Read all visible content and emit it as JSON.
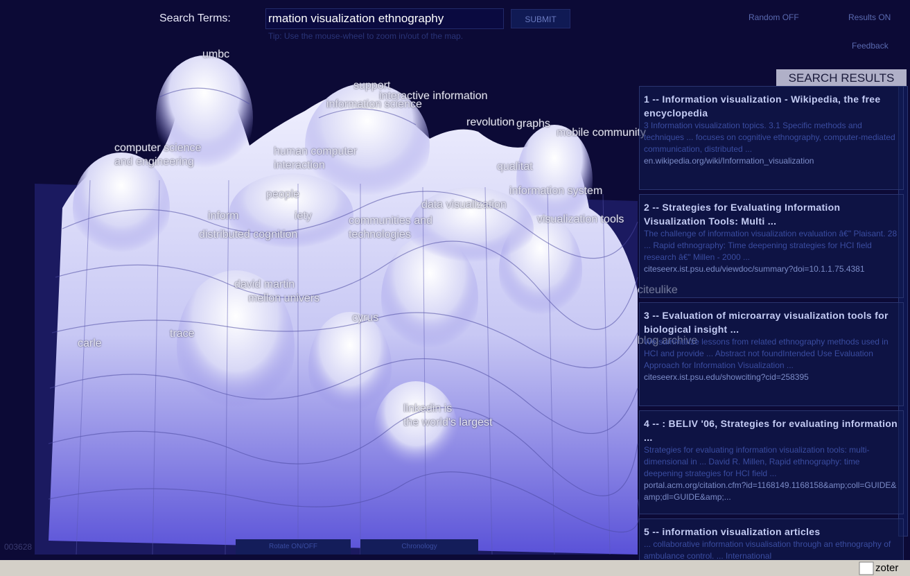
{
  "toolbar": {
    "search_label": "Search Terms:",
    "search_value": "rmation visualization ethnography",
    "submit": "SUBMIT",
    "tip": "Tip: Use the mouse-wheel to zoom in/out of the map.",
    "random": "Random OFF",
    "results": "Results ON",
    "feedback": "Feedback"
  },
  "map": {
    "labels": [
      {
        "lines": [
          "umbc"
        ]
      },
      {
        "lines": [
          "support"
        ]
      },
      {
        "lines": [
          "interactive information"
        ]
      },
      {
        "lines": [
          "information science"
        ]
      },
      {
        "lines": [
          "revolution"
        ]
      },
      {
        "lines": [
          "graphs"
        ]
      },
      {
        "lines": [
          "mobile community"
        ]
      },
      {
        "lines": [
          "computer science",
          "and engineering"
        ]
      },
      {
        "lines": [
          "human computer",
          "interaction"
        ]
      },
      {
        "lines": [
          "people"
        ]
      },
      {
        "lines": [
          "qualitat"
        ]
      },
      {
        "lines": [
          "information system"
        ]
      },
      {
        "lines": [
          "data visualization"
        ]
      },
      {
        "lines": [
          "inform"
        ]
      },
      {
        "lines": [
          "iety"
        ]
      },
      {
        "lines": [
          "distributed cognition"
        ]
      },
      {
        "lines": [
          "communities and",
          "technologies"
        ]
      },
      {
        "lines": [
          "visualization tools"
        ]
      },
      {
        "lines": [
          "citeulike"
        ]
      },
      {
        "lines": [
          "david martin"
        ]
      },
      {
        "lines": [
          "mellon univers"
        ]
      },
      {
        "lines": [
          "cyrus"
        ]
      },
      {
        "lines": [
          "trace"
        ]
      },
      {
        "lines": [
          "carle"
        ]
      },
      {
        "lines": [
          "blog archive"
        ]
      },
      {
        "lines": [
          "linkedin is",
          "the world's largest"
        ]
      }
    ],
    "counter": "003628",
    "rotate": "Rotate ON/OFF",
    "chronology": "Chronology"
  },
  "results": {
    "heading": "SEARCH RESULTS",
    "items": [
      {
        "title": "1 -- Information visualization - Wikipedia, the free encyclopedia",
        "snippet": "3 Information visualization topics. 3.1 Specific methods and techniques ... focuses on cognitive ethnography, computer-mediated communication, distributed ...",
        "url": "en.wikipedia.org/wiki/Information_visualization"
      },
      {
        "title": "2 -- Strategies for Evaluating Information Visualization Tools: Multi ...",
        "snippet": "The challenge of information visualization evaluation â€\" Plaisant. 28 ... Rapid ethnography: Time deepening strategies for HCI field research â€\" Millen - 2000 ...",
        "url": "citeseerx.ist.psu.edu/viewdoc/summary?doi=10.1.1.75.4381"
      },
      {
        "title": "3 -- Evaluation of microarray visualization tools for biological insight ...",
        "snippet": "We summarize lessons from related ethnography methods used in HCI and provide ... Abstract not foundIntended Use Evaluation Approach for Information Visualization ...",
        "url": "citeseerx.ist.psu.edu/showciting?cid=258395"
      },
      {
        "title": "4 -- : BELIV '06, Strategies for evaluating information ...",
        "snippet": "Strategies for evaluating information visualization tools: multi-dimensional in ... David R. Millen, Rapid ethnography: time deepening strategies for HCI field ...",
        "url": "portal.acm.org/citation.cfm?id=1168149.1168158&amp;coll=GUIDE&amp;dl=GUIDE&amp;..."
      },
      {
        "title": "5 -- information visualization articles",
        "snippet": "... collaborative information visualisation through an ethnography of ambulance control. ... International",
        "url": ""
      }
    ]
  },
  "statusbar": {
    "text": "zoter"
  }
}
